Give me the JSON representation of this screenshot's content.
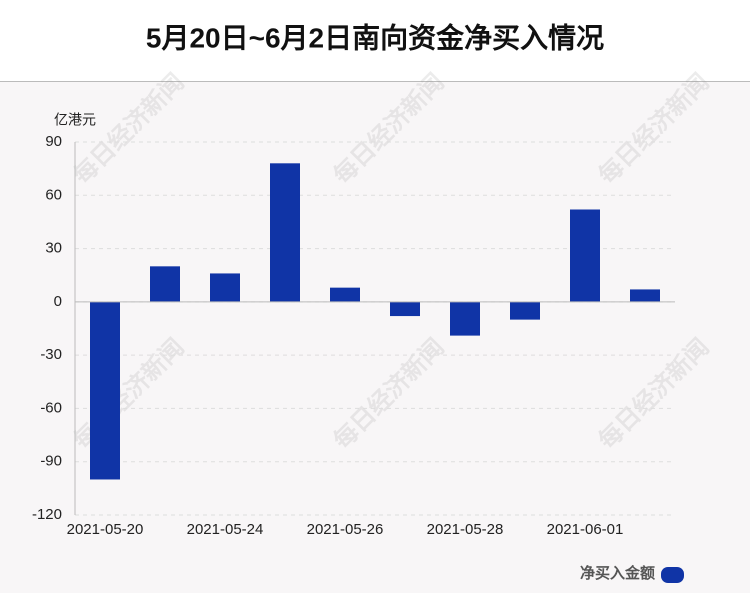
{
  "chart_data": {
    "type": "bar",
    "title": "5月20日~6月2日南向资金净买入情况",
    "y_label": "亿港元",
    "watermark": "每日经济新闻",
    "categories": [
      "2021-05-20",
      null,
      "2021-05-24",
      null,
      "2021-05-26",
      null,
      "2021-05-28",
      null,
      "2021-06-01",
      null
    ],
    "series": [
      {
        "name": "净买入金额",
        "color": "#1034a6",
        "values": [
          -100,
          20,
          16,
          78,
          8,
          -8,
          -19,
          -10,
          52,
          7
        ]
      }
    ],
    "ylim": [
      -120,
      90
    ],
    "yticks": [
      -120,
      -90,
      -60,
      -30,
      0,
      30,
      60,
      90
    ],
    "grid": true,
    "legend": "bottom-right"
  }
}
